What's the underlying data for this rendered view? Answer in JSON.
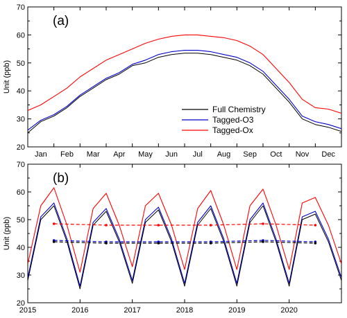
{
  "colors": {
    "full_chemistry": "#000000",
    "tagged_o3": "#0000cc",
    "tagged_ox": "#ff0000"
  },
  "chart_data": [
    {
      "type": "line",
      "panel_label": "(a)",
      "ylabel": "Unit (ppb)",
      "ylim": [
        20,
        70
      ],
      "yticks": [
        20,
        30,
        40,
        50,
        60,
        70
      ],
      "xticks": [
        "Jan",
        "Feb",
        "Mar",
        "Apr",
        "May",
        "Jun",
        "Jul",
        "Aug",
        "Sep",
        "Oct",
        "Nov",
        "Dec"
      ],
      "xlim": [
        0,
        12
      ],
      "legend_position": "lower-right",
      "x": [
        0,
        0.5,
        1,
        1.5,
        2,
        2.5,
        3,
        3.5,
        4,
        4.5,
        5,
        5.5,
        6,
        6.5,
        7,
        7.5,
        8,
        8.5,
        9,
        9.5,
        10,
        10.5,
        11,
        11.5,
        12
      ],
      "series": [
        {
          "name": "Full Chemistry",
          "color_key": "full_chemistry",
          "values": [
            25,
            29,
            31,
            34,
            38,
            41,
            44,
            46,
            49,
            50,
            52,
            53,
            53.5,
            53.5,
            53,
            52,
            51,
            49,
            46,
            41,
            36,
            30,
            28,
            27,
            25.5
          ]
        },
        {
          "name": "Tagged-O3",
          "color_key": "tagged_o3",
          "values": [
            26,
            29.5,
            31.5,
            34.5,
            38.5,
            41.5,
            44.5,
            46.5,
            49.5,
            51,
            53,
            54,
            54.5,
            54.5,
            54,
            53,
            52,
            50,
            47,
            42,
            37,
            31,
            29,
            28,
            26.5
          ]
        },
        {
          "name": "Tagged-Ox",
          "color_key": "tagged_ox",
          "values": [
            33,
            35,
            38,
            41,
            45,
            48,
            51,
            53,
            55,
            57,
            58.5,
            59.5,
            60,
            60,
            59.5,
            59,
            58,
            56,
            53,
            48,
            43,
            37,
            34,
            33.5,
            32
          ]
        }
      ]
    },
    {
      "type": "line",
      "panel_label": "(b)",
      "ylabel": "Unit (ppb)",
      "ylim": [
        20,
        70
      ],
      "yticks": [
        20,
        30,
        40,
        50,
        60,
        70
      ],
      "xticks": [
        "2015",
        "2016",
        "2017",
        "2018",
        "2019",
        "2020"
      ],
      "xlim": [
        2015,
        2021
      ],
      "x": [
        2015,
        2015.25,
        2015.5,
        2015.75,
        2016,
        2016.25,
        2016.5,
        2016.75,
        2017,
        2017.25,
        2017.5,
        2017.75,
        2018,
        2018.25,
        2018.5,
        2018.75,
        2019,
        2019.25,
        2019.5,
        2019.75,
        2020,
        2020.25,
        2020.5,
        2020.75,
        2021
      ],
      "series": [
        {
          "name": "Full Chemistry",
          "color_key": "full_chemistry",
          "values": [
            28,
            50,
            55,
            42,
            25,
            48,
            53,
            42,
            27,
            49,
            53.5,
            42,
            26,
            48,
            54,
            42,
            26,
            49,
            55,
            42,
            26,
            50,
            52,
            42,
            28
          ]
        },
        {
          "name": "Tagged-O3",
          "color_key": "tagged_o3",
          "values": [
            29,
            51,
            56,
            43,
            26,
            49,
            54,
            43,
            28,
            50,
            54.5,
            43,
            27,
            49,
            55,
            43,
            27,
            50,
            56,
            43,
            27,
            51,
            53,
            43,
            29
          ]
        },
        {
          "name": "Tagged-Ox",
          "color_key": "tagged_ox",
          "values": [
            34,
            55,
            61.5,
            48,
            31,
            54,
            59.5,
            48,
            33,
            55,
            59.5,
            48,
            32,
            54,
            60.5,
            48,
            32,
            55,
            61,
            48,
            32,
            56,
            58,
            48,
            34
          ]
        }
      ],
      "trend_series": [
        {
          "color_key": "tagged_ox",
          "x": [
            2015.5,
            2016.5,
            2017.5,
            2018.5,
            2019.5,
            2020.5
          ],
          "values": [
            48.5,
            48,
            48,
            48,
            48.5,
            48
          ]
        },
        {
          "color_key": "tagged_o3",
          "x": [
            2015.5,
            2016.5,
            2017.5,
            2018.5,
            2019.5,
            2020.5
          ],
          "values": [
            42.5,
            42,
            42,
            42,
            42.5,
            42
          ]
        },
        {
          "color_key": "full_chemistry",
          "x": [
            2015.5,
            2016.5,
            2017.5,
            2018.5,
            2019.5,
            2020.5
          ],
          "values": [
            42,
            41.5,
            41.5,
            41.5,
            42,
            41.5
          ]
        }
      ]
    }
  ]
}
